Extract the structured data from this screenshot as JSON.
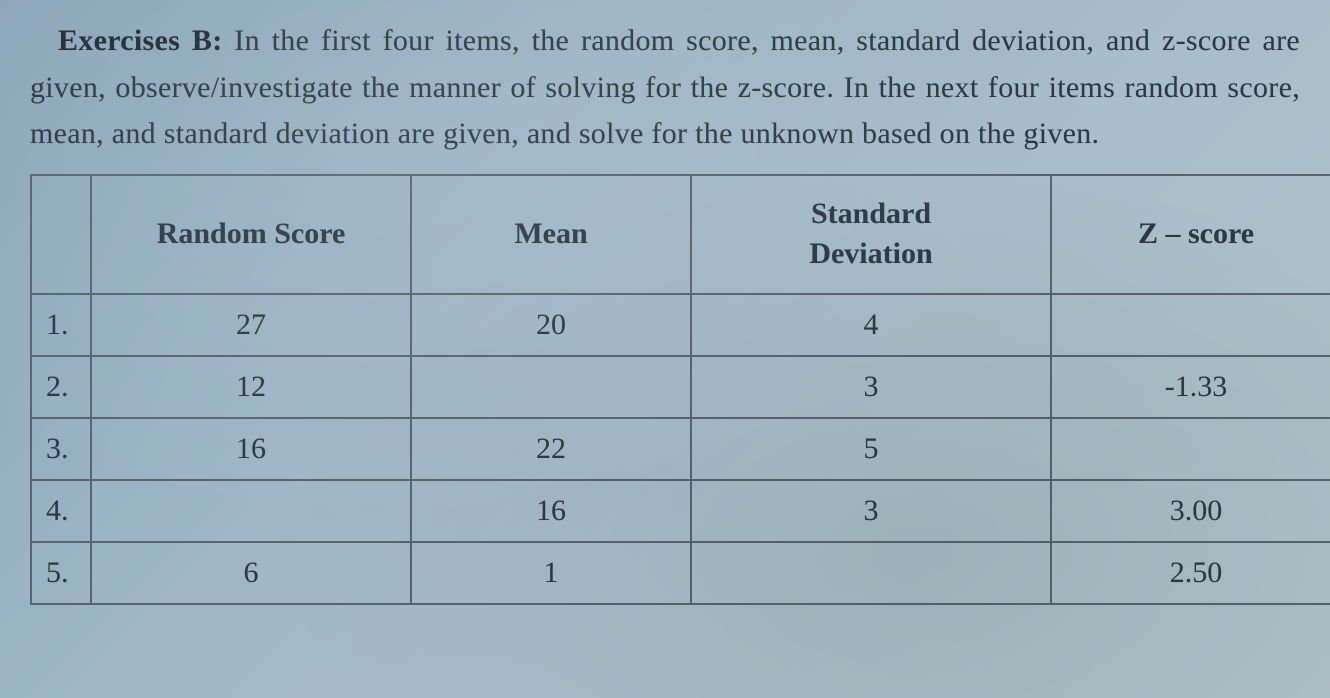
{
  "instructions": {
    "title": "Exercises B:",
    "body": "In the first four items, the random score, mean, standard deviation, and z-score are given, observe/investigate the manner of solving for the z-score. In the next four items random score, mean, and standard deviation are given, and solve for the unknown based on the given."
  },
  "table": {
    "headers": {
      "random_score": "Random Score",
      "mean": "Mean",
      "standard_deviation_line1": "Standard",
      "standard_deviation_line2": "Deviation",
      "z_score": "Z – score"
    },
    "rows": [
      {
        "idx": "1.",
        "random": "27",
        "mean": "20",
        "sd": "4",
        "z": ""
      },
      {
        "idx": "2.",
        "random": "12",
        "mean": "",
        "sd": "3",
        "z": "-1.33"
      },
      {
        "idx": "3.",
        "random": "16",
        "mean": "22",
        "sd": "5",
        "z": ""
      },
      {
        "idx": "4.",
        "random": "",
        "mean": "16",
        "sd": "3",
        "z": "3.00"
      },
      {
        "idx": "5.",
        "random": "6",
        "mean": "1",
        "sd": "",
        "z": "2.50"
      }
    ],
    "border_color": "#556670",
    "text_color": "#2a3a44",
    "header_fontsize": 30,
    "cell_fontsize": 30
  },
  "colors": {
    "background_start": "#8aa5b8",
    "background_end": "#b0c2ca",
    "text": "#2a3a44",
    "title": "#1f2d35"
  }
}
